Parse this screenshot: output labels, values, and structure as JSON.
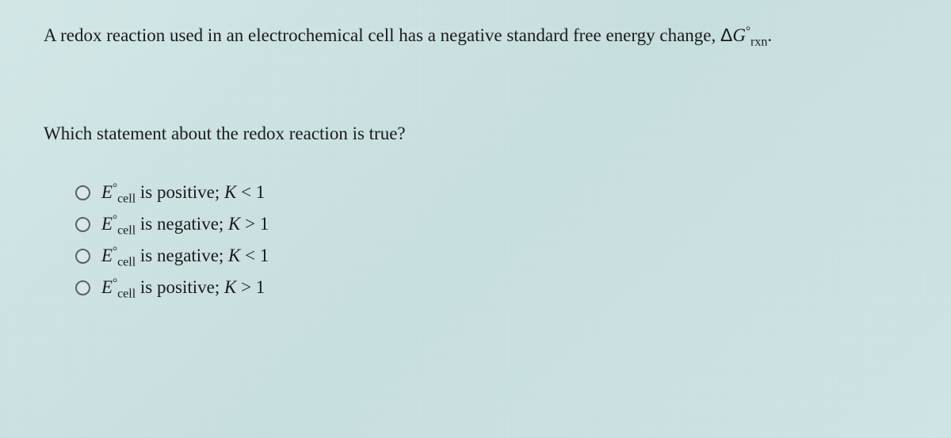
{
  "colors": {
    "background_gradient_start": "#d4e8e8",
    "background_gradient_mid": "#c8dfe0",
    "background_gradient_end": "#d0e5e5",
    "text_color": "#1a1a1a",
    "radio_border": "#606060"
  },
  "typography": {
    "body_font": "Times New Roman",
    "question_fontsize": 23,
    "option_fontsize": 23,
    "superscript_fontsize": 15,
    "subscript_fontsize": 16
  },
  "question": {
    "intro_prefix": "A redox reaction used in an electrochemical cell has a negative standard free energy change, ",
    "delta_symbol": "Δ",
    "g_symbol": "G",
    "degree_symbol": "°",
    "rxn_subscript": "rxn",
    "intro_suffix": ".",
    "prompt": "Which statement about the redox reaction is true?"
  },
  "options": [
    {
      "e_symbol": "E",
      "degree": "°",
      "cell_sub": "cell",
      "mid": " is positive; ",
      "k_symbol": "K",
      "rel": " < 1"
    },
    {
      "e_symbol": "E",
      "degree": "°",
      "cell_sub": "cell",
      "mid": " is negative; ",
      "k_symbol": "K",
      "rel": " > 1"
    },
    {
      "e_symbol": "E",
      "degree": "°",
      "cell_sub": "cell",
      "mid": " is negative; ",
      "k_symbol": "K",
      "rel": " < 1"
    },
    {
      "e_symbol": "E",
      "degree": "°",
      "cell_sub": "cell",
      "mid": " is positive; ",
      "k_symbol": "K",
      "rel": " > 1"
    }
  ]
}
